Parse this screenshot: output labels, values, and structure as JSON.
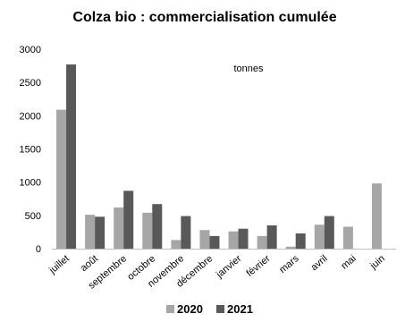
{
  "chart_data": {
    "type": "bar",
    "title": "Colza bio : commercialisation  cumulée",
    "annotation": "tonnes",
    "categories": [
      "juillet",
      "août",
      "septembre",
      "octobre",
      "novembre",
      "décembre",
      "janvier",
      "février",
      "mars",
      "avril",
      "mai",
      "juin"
    ],
    "series": [
      {
        "name": "2020",
        "color": "#a6a6a6",
        "values": [
          2090,
          510,
          620,
          540,
          130,
          280,
          260,
          190,
          30,
          360,
          330,
          980
        ]
      },
      {
        "name": "2021",
        "color": "#595959",
        "values": [
          2770,
          480,
          870,
          670,
          490,
          190,
          300,
          350,
          230,
          490,
          null,
          null
        ]
      }
    ],
    "yticks": [
      0,
      500,
      1000,
      1500,
      2000,
      2500,
      3000
    ],
    "ylim": [
      0,
      3000
    ],
    "grid": false,
    "legend_position": "bottom"
  }
}
